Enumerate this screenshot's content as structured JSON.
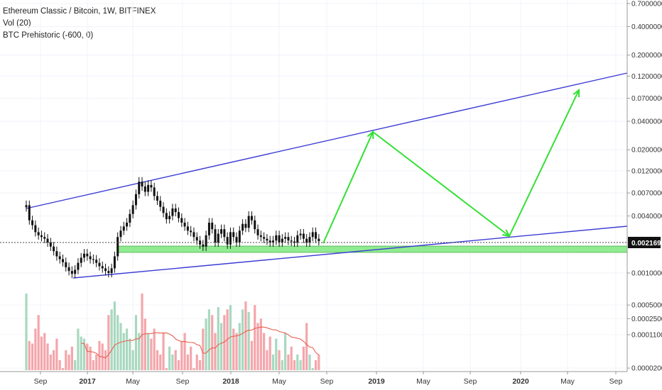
{
  "header": {
    "symbol_line": "Ethereum Classic / Bitcoin, 1W, BITFINEX",
    "indicator_vol": "Vol (20)",
    "indicator_btc": "BTC Prehistoric (-600, 0)"
  },
  "current_price": "0.0021693",
  "colors": {
    "trendline": "#3b3bd6",
    "arrow": "#33e033",
    "support_fill": "#7ee87e",
    "candle": "#111111",
    "vol_up": "#a8d8bf",
    "vol_down": "#f4a6ab",
    "vol_ma": "#e86050",
    "price_label_bg": "#111111"
  },
  "chart_data": {
    "type": "candlestick",
    "scale": "log",
    "y_ticks": [
      "0.7000000",
      "0.4000000",
      "0.2000000",
      "0.1200000",
      "0.0700000",
      "0.0400000",
      "0.0200000",
      "0.0120000",
      "0.0070000",
      "0.0040000",
      "0.0010000"
    ],
    "vol_ticks": [
      "0.0005000",
      "0.0002500",
      "0.0001100",
      "0.0000200"
    ],
    "x_ticks": [
      {
        "label": "Sep",
        "bold": false
      },
      {
        "label": "2017",
        "bold": true
      },
      {
        "label": "May",
        "bold": false
      },
      {
        "label": "Sep",
        "bold": false
      },
      {
        "label": "2018",
        "bold": true
      },
      {
        "label": "May",
        "bold": false
      },
      {
        "label": "Sep",
        "bold": false
      },
      {
        "label": "2019",
        "bold": true
      },
      {
        "label": "May",
        "bold": false
      },
      {
        "label": "Sep",
        "bold": false
      },
      {
        "label": "2020",
        "bold": true
      },
      {
        "label": "May",
        "bold": false
      },
      {
        "label": "Sep",
        "bold": false
      }
    ],
    "closes": [
      0.0052,
      0.0036,
      0.0032,
      0.0027,
      0.0025,
      0.0024,
      0.0023,
      0.0021,
      0.0019,
      0.0017,
      0.0015,
      0.0014,
      0.0013,
      0.00115,
      0.00105,
      0.00098,
      0.00108,
      0.00128,
      0.00145,
      0.0016,
      0.0015,
      0.0014,
      0.00138,
      0.00128,
      0.00118,
      0.00112,
      0.00105,
      0.001,
      0.00112,
      0.0015,
      0.0024,
      0.0028,
      0.0031,
      0.0034,
      0.0042,
      0.0052,
      0.0068,
      0.0092,
      0.0082,
      0.0072,
      0.0085,
      0.008,
      0.0065,
      0.0058,
      0.005,
      0.0043,
      0.0037,
      0.004,
      0.0048,
      0.0044,
      0.0038,
      0.0034,
      0.0031,
      0.0028,
      0.0027,
      0.0024,
      0.0022,
      0.002,
      0.0019,
      0.0025,
      0.0034,
      0.0029,
      0.0021,
      0.0026,
      0.0029,
      0.0024,
      0.002,
      0.0027,
      0.0024,
      0.0021,
      0.0028,
      0.0033,
      0.003,
      0.004,
      0.0036,
      0.0029,
      0.0025,
      0.0024,
      0.0023,
      0.0022,
      0.0021,
      0.0022,
      0.0025,
      0.0021,
      0.0023,
      0.0024,
      0.0022,
      0.00215,
      0.0021,
      0.0025,
      0.0026,
      0.0023,
      0.0021,
      0.0024,
      0.0027,
      0.0023,
      0.00217
    ],
    "volumes": [
      0.0009,
      8e-05,
      7e-05,
      0.00015,
      0.0003,
      0.0001,
      0.00012,
      7e-05,
      4e-05,
      5e-05,
      9e-05,
      3e-05,
      2e-05,
      5e-05,
      4e-05,
      6e-05,
      3e-05,
      0.00015,
      0.0001,
      9e-05,
      7e-05,
      6e-05,
      3e-05,
      4e-05,
      8e-05,
      7e-05,
      5e-05,
      0.0003,
      0.0004,
      0.0006,
      0.0003,
      0.0002,
      0.00012,
      0.00015,
      9e-05,
      5e-05,
      0.0003,
      0.00012,
      0.0009,
      0.00025,
      0.00012,
      9e-05,
      0.00015,
      5e-05,
      4e-05,
      0.00012,
      2e-05,
      6e-05,
      4e-05,
      5e-05,
      3e-05,
      8e-05,
      0.00012,
      4e-05,
      6e-05,
      2e-05,
      4e-05,
      3e-05,
      0.00015,
      0.00025,
      0.0004,
      0.0003,
      0.00012,
      0.00045,
      0.0002,
      0.0003,
      0.0004,
      0.0005,
      0.00015,
      0.00012,
      0.0002,
      0.0004,
      0.0006,
      0.00035,
      8e-05,
      0.0005,
      0.0002,
      0.00025,
      0.00012,
      5e-05,
      0.0001,
      4e-05,
      9e-05,
      5e-05,
      3e-05,
      0.00012,
      4e-05,
      6e-05,
      3e-05,
      4e-05,
      3e-05,
      6e-05,
      0.0002,
      4e-05,
      2e-05,
      3e-05,
      4e-05
    ]
  }
}
